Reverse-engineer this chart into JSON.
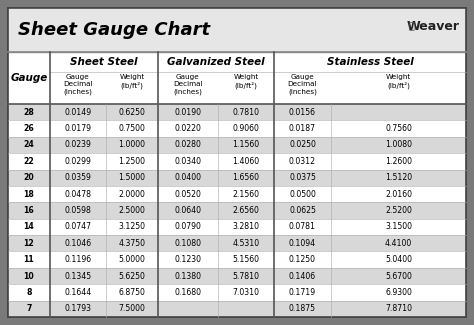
{
  "title": "Sheet Gauge Chart",
  "bg_outer": "#7a7a7a",
  "bg_inner": "#ffffff",
  "row_shaded": "#d8d8d8",
  "row_white": "#ffffff",
  "header_bg": "#ffffff",
  "border_color": "#444444",
  "gauges": [
    28,
    26,
    24,
    22,
    20,
    18,
    16,
    14,
    12,
    11,
    10,
    8,
    7
  ],
  "sheet_steel_decimal": [
    "0.0149",
    "0.0179",
    "0.0239",
    "0.0299",
    "0.0359",
    "0.0478",
    "0.0598",
    "0.0747",
    "0.1046",
    "0.1196",
    "0.1345",
    "0.1644",
    "0.1793"
  ],
  "sheet_steel_weight": [
    "0.6250",
    "0.7500",
    "1.0000",
    "1.2500",
    "1.5000",
    "2.0000",
    "2.5000",
    "3.1250",
    "4.3750",
    "5.0000",
    "5.6250",
    "6.8750",
    "7.5000"
  ],
  "galv_decimal": [
    "0.0190",
    "0.0220",
    "0.0280",
    "0.0340",
    "0.0400",
    "0.0520",
    "0.0640",
    "0.0790",
    "0.1080",
    "0.1230",
    "0.1380",
    "0.1680",
    ""
  ],
  "galv_weight": [
    "0.7810",
    "0.9060",
    "1.1560",
    "1.4060",
    "1.6560",
    "2.1560",
    "2.6560",
    "3.2810",
    "4.5310",
    "5.1560",
    "5.7810",
    "7.0310",
    ""
  ],
  "stainless_decimal": [
    "0.0156",
    "0.0187",
    "0.0250",
    "0.0312",
    "0.0375",
    "0.0500",
    "0.0625",
    "0.0781",
    "0.1094",
    "0.1250",
    "0.1406",
    "0.1719",
    "0.1875"
  ],
  "stainless_weight": [
    "",
    "0.7560",
    "1.0080",
    "1.2600",
    "1.5120",
    "2.0160",
    "2.5200",
    "3.1500",
    "4.4100",
    "5.0400",
    "5.6700",
    "6.9300",
    "7.8710"
  ]
}
